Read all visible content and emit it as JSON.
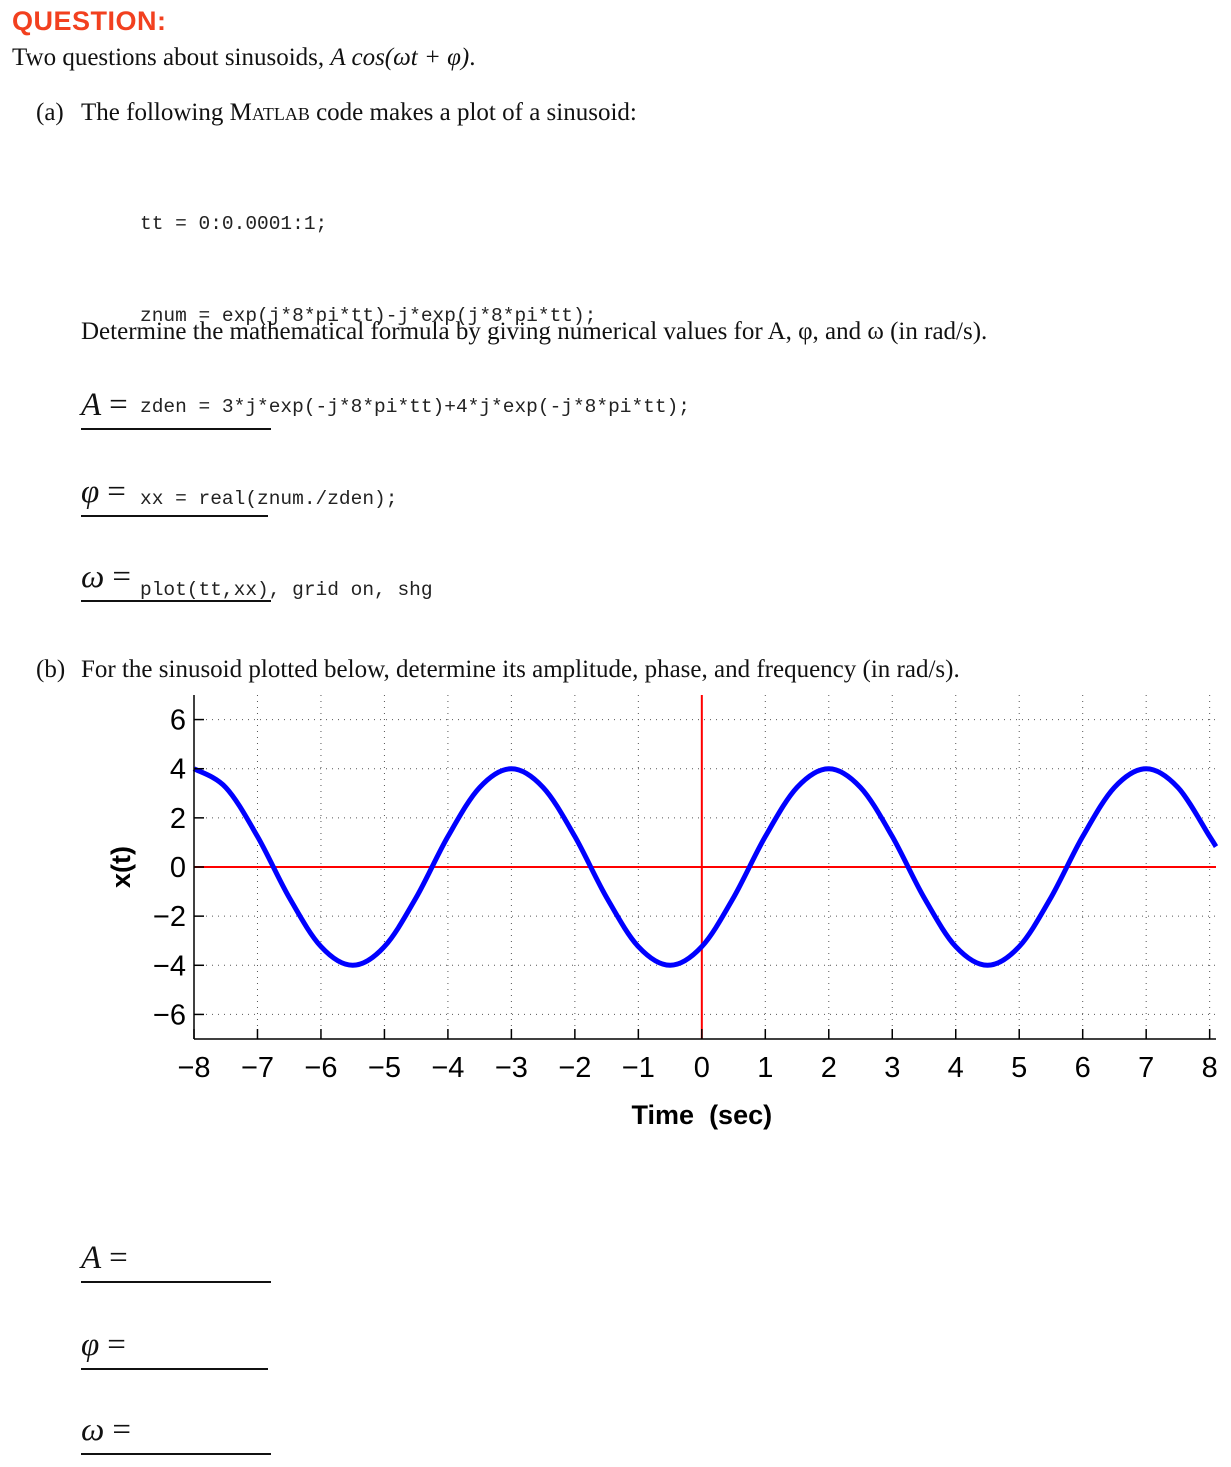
{
  "heading": "QUESTION:",
  "intro": {
    "text": "Two questions about sinusoids, ",
    "formula": "A cos(ωt + φ)",
    "end": "."
  },
  "part_a": {
    "label": "(a)",
    "text_before": "The following ",
    "matlab": "Matlab",
    "text_after": " code makes a plot of a sinusoid:",
    "code_lines": [
      "tt = 0:0.0001:1;",
      "znum = exp(j*8*pi*tt)-j*exp(j*8*pi*tt);",
      "zden = 3*j*exp(-j*8*pi*tt)+4*j*exp(-j*8*pi*tt);",
      "xx = real(znum./zden);",
      "plot(tt,xx), grid on, shg"
    ],
    "instruction": "Determine the mathematical formula by giving numerical values for A, φ, and ω (in rad/s).",
    "answers": [
      {
        "symbol": "A",
        "eq": "="
      },
      {
        "symbol": "φ",
        "eq": "="
      },
      {
        "symbol": "ω",
        "eq": "="
      }
    ]
  },
  "part_b": {
    "label": "(b)",
    "text": "For the sinusoid plotted below, determine its amplitude, phase, and frequency (in rad/s).",
    "answers": [
      {
        "symbol": "A",
        "eq": "="
      },
      {
        "symbol": "φ",
        "eq": "="
      },
      {
        "symbol": "ω",
        "eq": "="
      }
    ]
  },
  "chart_data": {
    "type": "line",
    "title": "",
    "xlabel": "Time  (sec)",
    "ylabel": "x(t)",
    "xlim": [
      -8,
      8.1
    ],
    "ylim": [
      -7,
      7
    ],
    "xticks": [
      -8,
      -7,
      -6,
      -5,
      -4,
      -3,
      -2,
      -1,
      0,
      1,
      2,
      3,
      4,
      5,
      6,
      7,
      8
    ],
    "xtick_labels": [
      "−8",
      "−7",
      "−6",
      "−5",
      "−4",
      "−3",
      "−2",
      "−1",
      "0",
      "1",
      "2",
      "3",
      "4",
      "5",
      "6",
      "7",
      "8"
    ],
    "yticks": [
      -6,
      -4,
      -2,
      0,
      2,
      4,
      6
    ],
    "ytick_labels": [
      "−6",
      "−4",
      "−2",
      "0",
      "2",
      "4",
      "6"
    ],
    "grid": true,
    "series": [
      {
        "color": "#0000ff",
        "x": [
          -8.0,
          -7.5,
          -7.0,
          -6.5,
          -6.0,
          -5.5,
          -5.0,
          -4.5,
          -4.0,
          -3.5,
          -3.0,
          -2.5,
          -2.0,
          -1.5,
          -1.0,
          -0.5,
          0.0,
          0.5,
          1.0,
          1.5,
          2.0,
          2.5,
          3.0,
          3.5,
          4.0,
          4.5,
          5.0,
          5.5,
          6.0,
          6.5,
          7.0,
          7.5,
          8.0,
          8.1
        ],
        "y": [
          4.0,
          3.24,
          1.24,
          -1.24,
          -3.24,
          -4.0,
          -3.24,
          -1.24,
          1.24,
          3.24,
          4.0,
          3.24,
          1.24,
          -1.24,
          -3.24,
          -4.0,
          -3.24,
          -1.24,
          1.24,
          3.24,
          4.0,
          3.24,
          1.24,
          -1.24,
          -3.24,
          -4.0,
          -3.24,
          -1.24,
          1.24,
          3.24,
          4.0,
          3.24,
          1.24,
          0.83
        ]
      }
    ],
    "reference_lines": {
      "color": "#ff0000",
      "x": 0,
      "y": 0
    }
  },
  "colors": {
    "heading": "#f2401f",
    "curve": "#0000ff",
    "axes_lines": "#ff0000"
  }
}
